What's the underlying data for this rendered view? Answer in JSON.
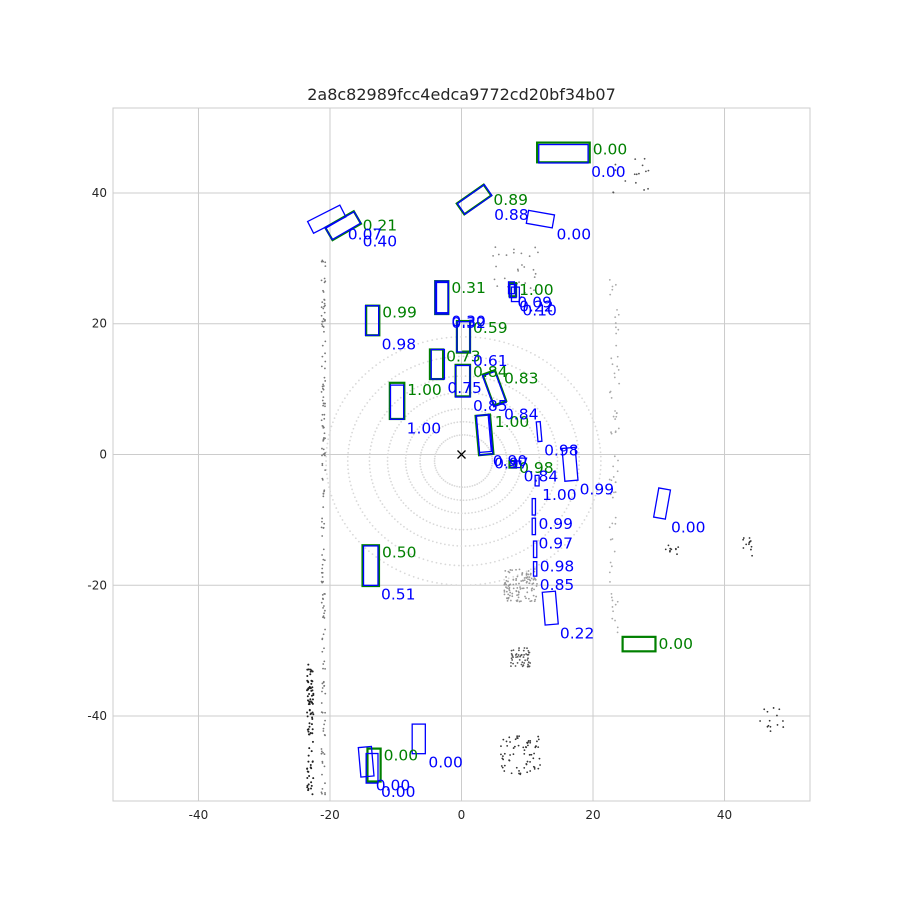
{
  "chart_data": {
    "type": "scatter",
    "title": "2a8c82989fcc4edca9772cd20bf34b07",
    "xlabel": "",
    "ylabel": "",
    "xlim": [
      -53,
      53
    ],
    "ylim": [
      -53,
      53
    ],
    "xticks": [
      -40,
      -20,
      0,
      20,
      40
    ],
    "yticks": [
      -40,
      -20,
      0,
      20,
      40
    ],
    "grid": true,
    "colors": {
      "ground_truth": "#008000",
      "prediction": "#0000ff",
      "lidar": "#555555",
      "grid": "#cccccc"
    },
    "ego_marker": {
      "x": 0,
      "y": 0,
      "symbol": "x"
    },
    "ground_truth_boxes": [
      {
        "x": 15.5,
        "y": 46.2,
        "w": 8.0,
        "h": 3.0,
        "angle": 0,
        "score": "0.00"
      },
      {
        "x": 1.9,
        "y": 39.0,
        "w": 5.0,
        "h": 2.0,
        "angle": -35,
        "score": "0.89"
      },
      {
        "x": -18.0,
        "y": 35.0,
        "w": 5.0,
        "h": 2.2,
        "angle": -30,
        "score": "0.21"
      },
      {
        "x": -3.0,
        "y": 24.0,
        "w": 2.0,
        "h": 5.0,
        "angle": 0,
        "score": "0.31"
      },
      {
        "x": 7.8,
        "y": 25.2,
        "w": 1.0,
        "h": 2.0,
        "angle": 0,
        "score": "1.00"
      },
      {
        "x": -13.5,
        "y": 20.5,
        "w": 2.0,
        "h": 4.5,
        "angle": 0,
        "score": "0.99"
      },
      {
        "x": 0.3,
        "y": 18.0,
        "w": 2.0,
        "h": 4.8,
        "angle": 0,
        "score": "0.59"
      },
      {
        "x": -3.8,
        "y": 13.8,
        "w": 2.0,
        "h": 4.5,
        "angle": 0,
        "score": "0.73"
      },
      {
        "x": 0.2,
        "y": 11.3,
        "w": 2.2,
        "h": 4.8,
        "angle": 0,
        "score": "0.84"
      },
      {
        "x": 5.0,
        "y": 10.2,
        "w": 2.0,
        "h": 5.0,
        "angle": -20,
        "score": "0.83"
      },
      {
        "x": -9.8,
        "y": 8.2,
        "w": 2.2,
        "h": 5.5,
        "angle": 0,
        "score": "1.00"
      },
      {
        "x": 3.5,
        "y": 3.0,
        "w": 2.2,
        "h": 6.0,
        "angle": -5,
        "score": "1.00"
      },
      {
        "x": 7.8,
        "y": -1.5,
        "w": 1.0,
        "h": 1.0,
        "angle": 0,
        "score": "0.98"
      },
      {
        "x": -13.8,
        "y": -17.0,
        "w": 2.5,
        "h": 6.2,
        "angle": 0,
        "score": "0.50"
      },
      {
        "x": 27.0,
        "y": -29.0,
        "w": 5.0,
        "h": 2.2,
        "angle": 0,
        "score": "0.00"
      },
      {
        "x": -13.3,
        "y": -47.5,
        "w": 2.0,
        "h": 5.0,
        "angle": 0,
        "score": "0.00"
      }
    ],
    "prediction_boxes": [
      {
        "x": 15.5,
        "y": 46.0,
        "w": 7.5,
        "h": 2.8,
        "angle": 0,
        "score": "0.00"
      },
      {
        "x": 2.0,
        "y": 39.0,
        "w": 5.0,
        "h": 2.0,
        "angle": -35,
        "score": "0.88"
      },
      {
        "x": 12.0,
        "y": 36.0,
        "w": 4.0,
        "h": 2.0,
        "angle": 10,
        "score": "0.00"
      },
      {
        "x": -20.5,
        "y": 36.0,
        "w": 5.5,
        "h": 2.0,
        "angle": -27,
        "score": "0.07"
      },
      {
        "x": -18.0,
        "y": 35.0,
        "w": 5.0,
        "h": 2.0,
        "angle": -30,
        "score": "0.40"
      },
      {
        "x": -3.0,
        "y": 24.0,
        "w": 2.0,
        "h": 5.0,
        "angle": 0,
        "score": "0.32"
      },
      {
        "x": -2.9,
        "y": 24.0,
        "w": 1.8,
        "h": 4.6,
        "angle": 0,
        "score": "0.30"
      },
      {
        "x": 7.8,
        "y": 25.0,
        "w": 1.0,
        "h": 2.0,
        "angle": 0,
        "score": "0.22"
      },
      {
        "x": 8.2,
        "y": 24.5,
        "w": 1.2,
        "h": 2.2,
        "angle": 0,
        "score": "0.10"
      },
      {
        "x": 7.6,
        "y": 25.5,
        "w": 0.9,
        "h": 1.8,
        "angle": 0,
        "score": "0.09"
      },
      {
        "x": -13.6,
        "y": 20.5,
        "w": 2.0,
        "h": 4.5,
        "angle": 0,
        "score": "0.98"
      },
      {
        "x": 0.3,
        "y": 18.0,
        "w": 2.0,
        "h": 4.6,
        "angle": 0,
        "score": "0.61"
      },
      {
        "x": -3.6,
        "y": 13.8,
        "w": 2.0,
        "h": 4.5,
        "angle": 0,
        "score": "0.75"
      },
      {
        "x": 0.2,
        "y": 11.2,
        "w": 2.2,
        "h": 4.8,
        "angle": 0,
        "score": "0.85"
      },
      {
        "x": 5.0,
        "y": 10.0,
        "w": 2.0,
        "h": 5.0,
        "angle": -20,
        "score": "0.84"
      },
      {
        "x": -9.8,
        "y": 8.0,
        "w": 2.0,
        "h": 5.2,
        "angle": 0,
        "score": "1.00"
      },
      {
        "x": 3.5,
        "y": 3.0,
        "w": 2.0,
        "h": 6.0,
        "angle": -5,
        "score": "0.97"
      },
      {
        "x": 3.4,
        "y": 3.2,
        "w": 1.8,
        "h": 5.6,
        "angle": -5,
        "score": "0.90"
      },
      {
        "x": 11.8,
        "y": 3.5,
        "w": 0.6,
        "h": 3.0,
        "angle": -5,
        "score": "0.98"
      },
      {
        "x": 16.5,
        "y": -1.5,
        "w": 2.0,
        "h": 5.0,
        "angle": -5,
        "score": "0.99"
      },
      {
        "x": 8.5,
        "y": -1.5,
        "w": 1.0,
        "h": 1.0,
        "angle": 0,
        "score": "0.84"
      },
      {
        "x": 11.5,
        "y": -4.0,
        "w": 0.6,
        "h": 1.6,
        "angle": 0,
        "score": "1.00"
      },
      {
        "x": 11.0,
        "y": -8.0,
        "w": 0.5,
        "h": 2.5,
        "angle": 0,
        "score": "0.99"
      },
      {
        "x": 11.0,
        "y": -11.0,
        "w": 0.5,
        "h": 2.5,
        "angle": 0,
        "score": "0.97"
      },
      {
        "x": 11.2,
        "y": -14.5,
        "w": 0.5,
        "h": 2.5,
        "angle": 0,
        "score": "0.98"
      },
      {
        "x": 11.2,
        "y": -17.5,
        "w": 0.5,
        "h": 2.2,
        "angle": 0,
        "score": "0.85"
      },
      {
        "x": 30.5,
        "y": -7.5,
        "w": 1.8,
        "h": 4.5,
        "angle": 10,
        "score": "0.00"
      },
      {
        "x": -13.8,
        "y": -17.0,
        "w": 2.2,
        "h": 6.0,
        "angle": 0,
        "score": "0.51"
      },
      {
        "x": 13.5,
        "y": -23.5,
        "w": 2.0,
        "h": 5.0,
        "angle": -5,
        "score": "0.22"
      },
      {
        "x": -6.5,
        "y": -43.5,
        "w": 2.0,
        "h": 4.5,
        "angle": 0,
        "score": "0.00"
      },
      {
        "x": -14.5,
        "y": -47.0,
        "w": 2.0,
        "h": 4.5,
        "angle": -5,
        "score": "0.00"
      },
      {
        "x": -13.6,
        "y": -48.0,
        "w": 1.8,
        "h": 4.5,
        "angle": 0,
        "score": "0.00"
      }
    ]
  }
}
